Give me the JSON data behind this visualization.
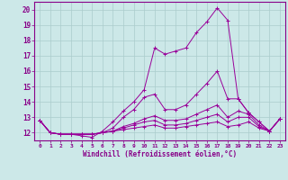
{
  "x": [
    0,
    1,
    2,
    3,
    4,
    5,
    6,
    7,
    8,
    9,
    10,
    11,
    12,
    13,
    14,
    15,
    16,
    17,
    18,
    19,
    20,
    21,
    22,
    23
  ],
  "series": [
    [
      12.8,
      12.0,
      11.9,
      11.9,
      11.8,
      11.7,
      12.1,
      12.7,
      13.4,
      14.0,
      14.8,
      17.5,
      17.1,
      17.3,
      17.5,
      18.5,
      19.2,
      20.1,
      19.3,
      14.2,
      13.3,
      12.7,
      12.1,
      12.9
    ],
    [
      12.8,
      12.0,
      11.9,
      11.9,
      11.9,
      11.9,
      12.0,
      12.3,
      13.0,
      13.5,
      14.3,
      14.5,
      13.5,
      13.5,
      13.8,
      14.5,
      15.2,
      16.0,
      14.2,
      14.2,
      13.3,
      12.7,
      12.1,
      12.9
    ],
    [
      12.8,
      12.0,
      11.9,
      11.9,
      11.9,
      11.9,
      12.0,
      12.1,
      12.4,
      12.6,
      12.9,
      13.1,
      12.8,
      12.8,
      12.9,
      13.2,
      13.5,
      13.8,
      13.0,
      13.4,
      13.2,
      12.5,
      12.1,
      12.9
    ],
    [
      12.8,
      12.0,
      11.9,
      11.9,
      11.9,
      11.9,
      12.0,
      12.1,
      12.3,
      12.5,
      12.7,
      12.8,
      12.5,
      12.5,
      12.6,
      12.8,
      13.0,
      13.2,
      12.7,
      13.0,
      13.0,
      12.4,
      12.1,
      12.9
    ],
    [
      12.8,
      12.0,
      11.9,
      11.9,
      11.9,
      11.9,
      12.0,
      12.1,
      12.2,
      12.3,
      12.4,
      12.5,
      12.3,
      12.3,
      12.4,
      12.5,
      12.6,
      12.7,
      12.4,
      12.5,
      12.7,
      12.3,
      12.1,
      12.9
    ]
  ],
  "line_color": "#990099",
  "xlim": [
    -0.5,
    23.5
  ],
  "ylim": [
    11.5,
    20.5
  ],
  "yticks": [
    12,
    13,
    14,
    15,
    16,
    17,
    18,
    19,
    20
  ],
  "xticks": [
    0,
    1,
    2,
    3,
    4,
    5,
    6,
    7,
    8,
    9,
    10,
    11,
    12,
    13,
    14,
    15,
    16,
    17,
    18,
    19,
    20,
    21,
    22,
    23
  ],
  "xlabel": "Windchill (Refroidissement éolien,°C)",
  "bg_color": "#cce8e8",
  "grid_color": "#aacccc",
  "text_color": "#880088",
  "marker": "+"
}
